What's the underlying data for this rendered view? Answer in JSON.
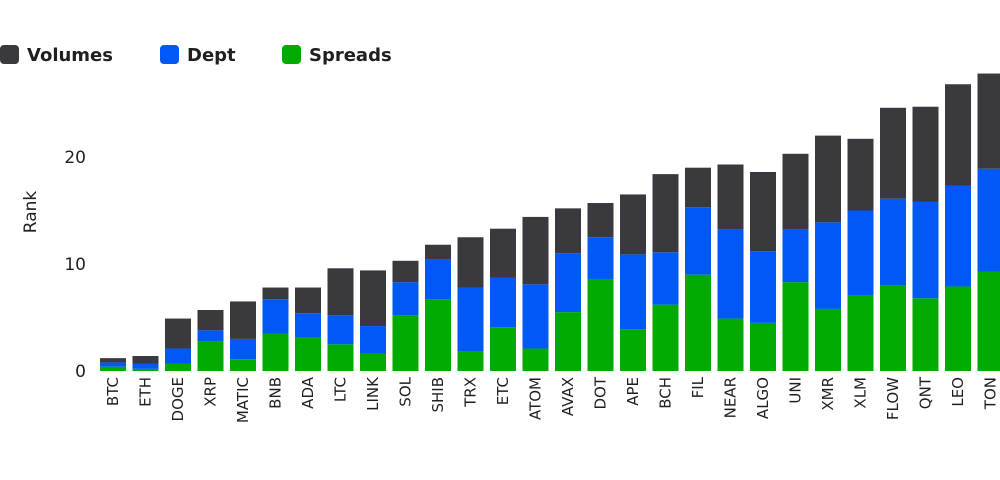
{
  "chart_data": {
    "type": "bar",
    "stacked": true,
    "title": "",
    "xlabel": "",
    "ylabel": "Rank",
    "ylim": [
      0,
      27
    ],
    "yticks": [
      0,
      10,
      20
    ],
    "grid": false,
    "legend_position": "top-left",
    "categories": [
      "BTC",
      "ETH",
      "DOGE",
      "XRP",
      "MATIC",
      "BNB",
      "ADA",
      "LTC",
      "LINK",
      "SOL",
      "SHIB",
      "TRX",
      "ETC",
      "ATOM",
      "AVAX",
      "DOT",
      "APE",
      "BCH",
      "FIL",
      "NEAR",
      "ALGO",
      "UNI",
      "XMR",
      "XLM",
      "FLOW",
      "QNT",
      "LEO",
      "TON"
    ],
    "series": [
      {
        "name": "Spreads",
        "color": "#00aa00",
        "values": [
          0.4,
          0.2,
          0.7,
          2.8,
          1.1,
          3.5,
          3.1,
          2.5,
          1.6,
          5.2,
          6.7,
          1.8,
          4.1,
          2.1,
          5.5,
          8.6,
          3.9,
          6.2,
          9.0,
          4.9,
          4.5,
          8.3,
          5.8,
          7.1,
          8.0,
          6.8,
          7.9,
          9.3
        ]
      },
      {
        "name": "Dept",
        "color": "#0059f5",
        "values": [
          0.4,
          0.5,
          1.4,
          1.0,
          1.9,
          3.2,
          2.3,
          2.7,
          2.6,
          3.1,
          3.7,
          6.0,
          4.6,
          6.0,
          5.5,
          3.9,
          7.0,
          4.9,
          6.3,
          8.3,
          6.7,
          4.9,
          8.1,
          7.9,
          8.1,
          9.0,
          9.4,
          9.6
        ]
      },
      {
        "name": "Volumes",
        "color": "#3a393d",
        "values": [
          0.4,
          0.7,
          2.8,
          1.9,
          3.5,
          1.1,
          2.4,
          4.4,
          5.2,
          2.0,
          1.4,
          4.7,
          4.6,
          6.3,
          4.2,
          3.2,
          5.6,
          7.3,
          3.7,
          6.1,
          7.4,
          7.1,
          8.1,
          6.7,
          8.5,
          8.9,
          9.5,
          8.9
        ]
      }
    ],
    "legend_order": [
      "Volumes",
      "Dept",
      "Spreads"
    ]
  }
}
